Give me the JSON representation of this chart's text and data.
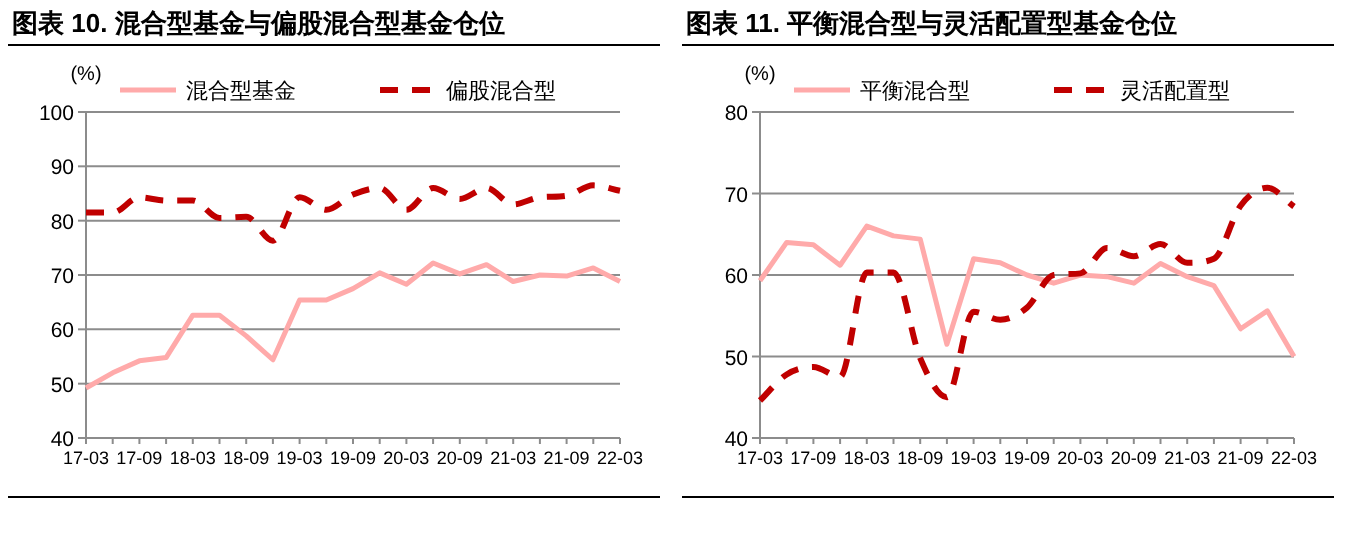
{
  "chart_data": [
    {
      "type": "line",
      "title": "图表 10. 混合型基金与偏股混合型基金仓位",
      "ylabel": "(%)",
      "categories": [
        "17-03",
        null,
        "17-09",
        null,
        "18-03",
        null,
        "18-09",
        null,
        "19-03",
        null,
        "19-09",
        null,
        "20-03",
        null,
        "20-09",
        null,
        "21-03",
        null,
        "21-09",
        null,
        "22-03"
      ],
      "ylim": [
        40,
        100
      ],
      "yticks": [
        40,
        50,
        60,
        70,
        80,
        90,
        100
      ],
      "grid": "y",
      "legend": "top",
      "series": [
        {
          "name": "混合型基金",
          "color": "#ffaaaa",
          "line_style": "solid",
          "values": [
            49.2,
            52,
            54.2,
            54.8,
            62.6,
            62.6,
            58.8,
            54.4,
            65.4,
            65.4,
            67.5,
            70.4,
            68.3,
            72.2,
            70.2,
            71.9,
            68.8,
            70,
            69.8,
            71.3,
            68.8
          ]
        },
        {
          "name": "偏股混合型",
          "color": "#c00000",
          "line_style": "dashed",
          "values": [
            81.5,
            81.5,
            84.3,
            83.7,
            83.7,
            80.5,
            80.7,
            76.3,
            84.3,
            82,
            84.8,
            86,
            82,
            86,
            84,
            86,
            83,
            84.3,
            84.6,
            86.5,
            85.5
          ]
        }
      ]
    },
    {
      "type": "line",
      "title": "图表 11. 平衡混合型与灵活配置型基金仓位",
      "ylabel": "(%)",
      "categories": [
        "17-03",
        null,
        "17-09",
        null,
        "18-03",
        null,
        "18-09",
        null,
        "19-03",
        null,
        "19-09",
        null,
        "20-03",
        null,
        "20-09",
        null,
        "21-03",
        null,
        "21-09",
        null,
        "22-03"
      ],
      "ylim": [
        40,
        80
      ],
      "yticks": [
        40,
        50,
        60,
        70,
        80
      ],
      "grid": "y",
      "legend": "top",
      "series": [
        {
          "name": "平衡混合型",
          "color": "#ffaaaa",
          "line_style": "solid",
          "values": [
            59.3,
            64,
            63.7,
            61.2,
            66,
            64.8,
            64.4,
            51.5,
            62,
            61.5,
            60,
            59,
            60,
            59.8,
            59,
            61.4,
            59.8,
            58.7,
            53.4,
            55.6,
            50
          ]
        },
        {
          "name": "灵活配置型",
          "color": "#c00000",
          "line_style": "dashed",
          "values": [
            44.6,
            47.8,
            48.7,
            47.5,
            60.3,
            60.3,
            49.8,
            45,
            55.5,
            54.5,
            56,
            60,
            60.2,
            63.3,
            62.3,
            63.8,
            61.5,
            62,
            68.5,
            70.7,
            68.4
          ]
        }
      ]
    }
  ]
}
